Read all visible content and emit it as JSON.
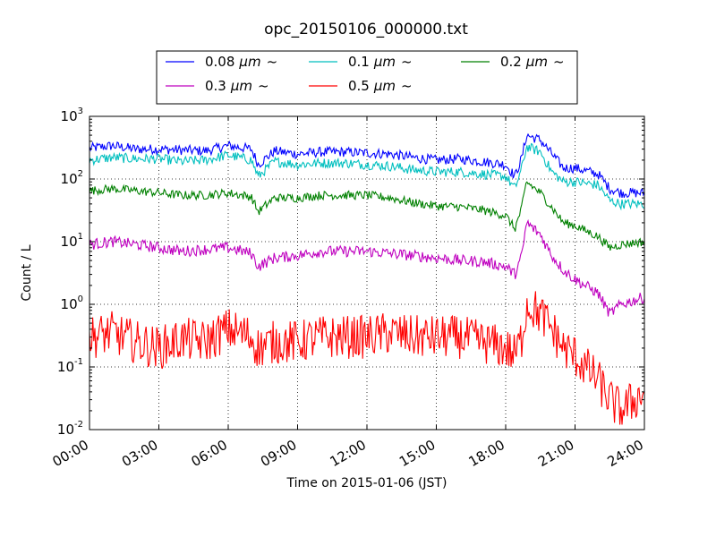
{
  "chart_data": {
    "type": "line",
    "title": "opc_20150106_000000.txt",
    "xlabel": "Time on 2015-01-06 (JST)",
    "ylabel": "Count / L",
    "x_ticks": [
      "00:00",
      "03:00",
      "06:00",
      "09:00",
      "12:00",
      "15:00",
      "18:00",
      "21:00",
      "24:00"
    ],
    "x_range_hours": [
      0,
      24
    ],
    "y_scale": "log",
    "ylim": [
      0.01,
      1000
    ],
    "y_ticks": [
      {
        "base": "10",
        "exp": "-2",
        "value": 0.01
      },
      {
        "base": "10",
        "exp": "-1",
        "value": 0.1
      },
      {
        "base": "10",
        "exp": "0",
        "value": 1
      },
      {
        "base": "10",
        "exp": "1",
        "value": 10
      },
      {
        "base": "10",
        "exp": "2",
        "value": 100
      },
      {
        "base": "10",
        "exp": "3",
        "value": 1000
      }
    ],
    "grid": true,
    "legend_placement": "top-center, above plot",
    "legend_units": "μm",
    "legend_suffix": "~",
    "series": [
      {
        "name": "0.08",
        "color": "#0000ff",
        "values": [
          [
            0,
            310
          ],
          [
            1,
            340
          ],
          [
            2,
            300
          ],
          [
            3,
            300
          ],
          [
            4,
            290
          ],
          [
            5,
            280
          ],
          [
            6,
            340
          ],
          [
            7,
            300
          ],
          [
            7.3,
            170
          ],
          [
            8,
            280
          ],
          [
            9,
            250
          ],
          [
            10,
            270
          ],
          [
            11,
            270
          ],
          [
            12,
            260
          ],
          [
            13,
            250
          ],
          [
            14,
            220
          ],
          [
            15,
            200
          ],
          [
            16,
            210
          ],
          [
            17,
            190
          ],
          [
            18,
            170
          ],
          [
            18.4,
            110
          ],
          [
            18.7,
            220
          ],
          [
            18.9,
            500
          ],
          [
            19.5,
            420
          ],
          [
            20,
            250
          ],
          [
            20.5,
            150
          ],
          [
            21,
            150
          ],
          [
            22,
            120
          ],
          [
            22.5,
            70
          ],
          [
            23,
            60
          ],
          [
            24,
            60
          ]
        ]
      },
      {
        "name": "0.1",
        "color": "#00bfbf",
        "values": [
          [
            0,
            200
          ],
          [
            1,
            220
          ],
          [
            2,
            210
          ],
          [
            3,
            210
          ],
          [
            4,
            190
          ],
          [
            5,
            200
          ],
          [
            6,
            240
          ],
          [
            7,
            200
          ],
          [
            7.3,
            110
          ],
          [
            8,
            190
          ],
          [
            9,
            170
          ],
          [
            10,
            180
          ],
          [
            11,
            180
          ],
          [
            12,
            170
          ],
          [
            13,
            160
          ],
          [
            14,
            140
          ],
          [
            15,
            130
          ],
          [
            16,
            130
          ],
          [
            17,
            120
          ],
          [
            18,
            110
          ],
          [
            18.4,
            70
          ],
          [
            18.7,
            150
          ],
          [
            18.9,
            330
          ],
          [
            19.5,
            270
          ],
          [
            20,
            130
          ],
          [
            20.5,
            90
          ],
          [
            21,
            90
          ],
          [
            22,
            80
          ],
          [
            22.5,
            45
          ],
          [
            23,
            40
          ],
          [
            24,
            40
          ]
        ]
      },
      {
        "name": "0.2",
        "color": "#008000",
        "values": [
          [
            0,
            65
          ],
          [
            1,
            70
          ],
          [
            2,
            65
          ],
          [
            3,
            60
          ],
          [
            4,
            55
          ],
          [
            5,
            55
          ],
          [
            6,
            60
          ],
          [
            7,
            52
          ],
          [
            7.3,
            30
          ],
          [
            8,
            50
          ],
          [
            9,
            50
          ],
          [
            10,
            55
          ],
          [
            11,
            55
          ],
          [
            12,
            55
          ],
          [
            13,
            50
          ],
          [
            14,
            42
          ],
          [
            15,
            37
          ],
          [
            16,
            36
          ],
          [
            17,
            32
          ],
          [
            18,
            26
          ],
          [
            18.4,
            16
          ],
          [
            18.7,
            35
          ],
          [
            18.9,
            90
          ],
          [
            19.5,
            60
          ],
          [
            20,
            35
          ],
          [
            20.5,
            20
          ],
          [
            21,
            18
          ],
          [
            22,
            12
          ],
          [
            22.5,
            8
          ],
          [
            23,
            9
          ],
          [
            24,
            10
          ]
        ]
      },
      {
        "name": "0.3",
        "color": "#bf00bf",
        "values": [
          [
            0,
            9
          ],
          [
            1,
            10
          ],
          [
            2,
            9
          ],
          [
            3,
            8
          ],
          [
            4,
            7
          ],
          [
            5,
            7.5
          ],
          [
            6,
            8
          ],
          [
            7,
            6.5
          ],
          [
            7.3,
            4
          ],
          [
            8,
            5.5
          ],
          [
            9,
            6
          ],
          [
            10,
            7
          ],
          [
            11,
            7
          ],
          [
            12,
            7
          ],
          [
            13,
            6.5
          ],
          [
            14,
            6
          ],
          [
            15,
            5.5
          ],
          [
            16,
            5
          ],
          [
            17,
            4.8
          ],
          [
            18,
            4
          ],
          [
            18.4,
            3
          ],
          [
            18.7,
            6
          ],
          [
            18.9,
            20
          ],
          [
            19.5,
            13
          ],
          [
            20,
            6
          ],
          [
            20.5,
            3.5
          ],
          [
            21,
            2.5
          ],
          [
            22,
            1.5
          ],
          [
            22.5,
            0.7
          ],
          [
            23,
            1
          ],
          [
            24,
            1.3
          ]
        ]
      },
      {
        "name": "0.5",
        "color": "#ff0000",
        "values": [
          [
            0,
            0.3
          ],
          [
            1,
            0.35
          ],
          [
            2,
            0.25
          ],
          [
            3,
            0.2
          ],
          [
            4,
            0.28
          ],
          [
            5,
            0.25
          ],
          [
            6,
            0.4
          ],
          [
            7,
            0.3
          ],
          [
            7.3,
            0.2
          ],
          [
            8,
            0.25
          ],
          [
            9,
            0.25
          ],
          [
            10,
            0.3
          ],
          [
            11,
            0.3
          ],
          [
            12,
            0.3
          ],
          [
            13,
            0.35
          ],
          [
            14,
            0.3
          ],
          [
            15,
            0.3
          ],
          [
            16,
            0.3
          ],
          [
            17,
            0.25
          ],
          [
            18,
            0.2
          ],
          [
            18.4,
            0.15
          ],
          [
            18.7,
            0.3
          ],
          [
            18.9,
            1
          ],
          [
            19.5,
            0.7
          ],
          [
            20,
            0.4
          ],
          [
            20.5,
            0.2
          ],
          [
            21,
            0.15
          ],
          [
            22,
            0.06
          ],
          [
            22.5,
            0.03
          ],
          [
            23,
            0.02
          ],
          [
            24,
            0.04
          ]
        ]
      }
    ]
  }
}
